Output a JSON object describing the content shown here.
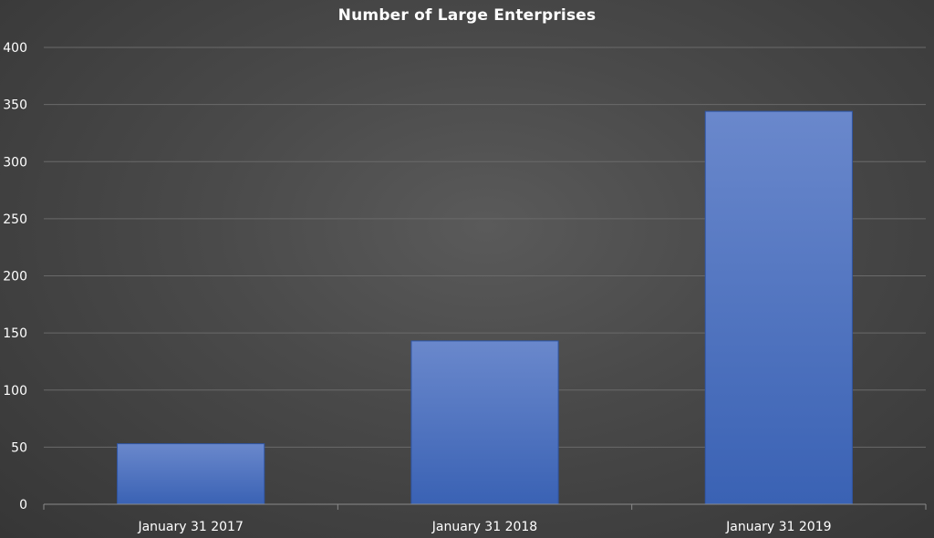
{
  "chart_data": {
    "type": "bar",
    "title": "Number of Large Enterprises",
    "xlabel": "",
    "ylabel": "",
    "categories": [
      "January 31 2017",
      "January 31 2018",
      "January 31 2019"
    ],
    "values": [
      53,
      143,
      344
    ],
    "ylim": [
      0,
      400
    ],
    "yticks": [
      0,
      50,
      100,
      150,
      200,
      250,
      300,
      350,
      400
    ],
    "grid": true,
    "legend": "none",
    "colors": {
      "bar_top": "#6a88cc",
      "bar_bottom": "#3a62b4",
      "bar_edge": "#2f56a6",
      "grid": "#6a6a6a",
      "axis": "#8a8a8a",
      "text": "#ffffff"
    }
  }
}
